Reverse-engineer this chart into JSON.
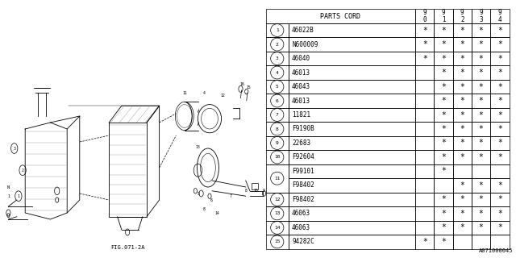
{
  "fig_label": "FIG.071-2A",
  "catalog_id": "A071000045",
  "bg_color": "#ffffff",
  "row_data": [
    {
      "num": "1",
      "part": "46022B",
      "c90": "*",
      "c91": "*",
      "c92": "*",
      "c93": "*",
      "c94": "*"
    },
    {
      "num": "2",
      "part": "N600009",
      "c90": "*",
      "c91": "*",
      "c92": "*",
      "c93": "*",
      "c94": "*"
    },
    {
      "num": "3",
      "part": "46040",
      "c90": "*",
      "c91": "*",
      "c92": "*",
      "c93": "*",
      "c94": "*"
    },
    {
      "num": "4",
      "part": "46013",
      "c90": "",
      "c91": "*",
      "c92": "*",
      "c93": "*",
      "c94": "*"
    },
    {
      "num": "5",
      "part": "46043",
      "c90": "",
      "c91": "*",
      "c92": "*",
      "c93": "*",
      "c94": "*"
    },
    {
      "num": "6",
      "part": "46013",
      "c90": "",
      "c91": "*",
      "c92": "*",
      "c93": "*",
      "c94": "*"
    },
    {
      "num": "7",
      "part": "11821",
      "c90": "",
      "c91": "*",
      "c92": "*",
      "c93": "*",
      "c94": "*"
    },
    {
      "num": "8",
      "part": "F9190B",
      "c90": "",
      "c91": "*",
      "c92": "*",
      "c93": "*",
      "c94": "*"
    },
    {
      "num": "9",
      "part": "22683",
      "c90": "",
      "c91": "*",
      "c92": "*",
      "c93": "*",
      "c94": "*"
    },
    {
      "num": "10",
      "part": "F92604",
      "c90": "",
      "c91": "*",
      "c92": "*",
      "c93": "*",
      "c94": "*"
    },
    {
      "num": "11",
      "part": "F99101",
      "c90": "",
      "c91": "*",
      "c92": "",
      "c93": "",
      "c94": "",
      "sub_part": "F98402",
      "sc90": "",
      "sc91": "",
      "sc92": "*",
      "sc93": "*",
      "sc94": "*"
    },
    {
      "num": "12",
      "part": "F98402",
      "c90": "",
      "c91": "*",
      "c92": "*",
      "c93": "*",
      "c94": "*"
    },
    {
      "num": "13",
      "part": "46063",
      "c90": "",
      "c91": "*",
      "c92": "*",
      "c93": "*",
      "c94": "*"
    },
    {
      "num": "14",
      "part": "46063",
      "c90": "",
      "c91": "*",
      "c92": "*",
      "c93": "*",
      "c94": "*"
    },
    {
      "num": "15",
      "part": "94282C",
      "c90": "*",
      "c91": "*",
      "c92": "",
      "c93": "",
      "c94": ""
    }
  ]
}
